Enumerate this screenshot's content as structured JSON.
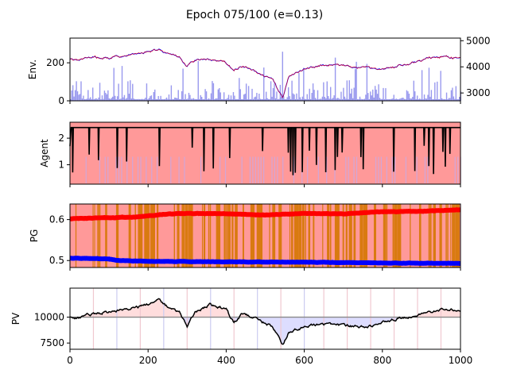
{
  "figure": {
    "title": "Epoch 075/100 (e=0.13)"
  },
  "colors": {
    "price_line": "#0000ff",
    "price_overlay": "#ff0000",
    "volume": "#9999ee",
    "agent_bg": "#ff9999",
    "agent_line": "#000000",
    "pg_orange": "#d97a10",
    "pg_red": "#ff0000",
    "pg_blue": "#0000ff",
    "pv_line": "#000000",
    "pv_pos_fill": "#ffdddd",
    "pv_neg_fill": "#ddddff",
    "baseline": "#888888"
  },
  "chart_data": [
    {
      "type": "line",
      "ylabel": "Env.",
      "xlim": [
        0,
        1000
      ],
      "ylim_left": [
        0,
        330
      ],
      "yticks_left": [
        "0",
        "200"
      ],
      "ylim_right": [
        2700,
        5100
      ],
      "yticks_right": [
        "3000",
        "4000",
        "5000"
      ],
      "series": [
        {
          "values_right_axis_keyframes": [
            [
              0,
              4300
            ],
            [
              20,
              4260
            ],
            [
              60,
              4380
            ],
            [
              100,
              4330
            ],
            [
              140,
              4420
            ],
            [
              180,
              4520
            ],
            [
              230,
              4680
            ],
            [
              240,
              4560
            ],
            [
              280,
              4400
            ],
            [
              300,
              4000
            ],
            [
              320,
              4270
            ],
            [
              360,
              4280
            ],
            [
              400,
              4140
            ],
            [
              420,
              3880
            ],
            [
              440,
              4020
            ],
            [
              480,
              3780
            ],
            [
              520,
              3500
            ],
            [
              545,
              2800
            ],
            [
              560,
              3600
            ],
            [
              600,
              3900
            ],
            [
              640,
              4050
            ],
            [
              680,
              4080
            ],
            [
              720,
              4000
            ],
            [
              760,
              3980
            ],
            [
              800,
              3920
            ],
            [
              840,
              4020
            ],
            [
              880,
              4160
            ],
            [
              920,
              4350
            ],
            [
              960,
              4400
            ],
            [
              1000,
              4300
            ]
          ]
        }
      ]
    },
    {
      "type": "line",
      "ylabel": "Agent",
      "xlim": [
        0,
        1000
      ],
      "ylim": [
        0.27,
        2.6
      ],
      "yticks": [
        "1",
        "2"
      ],
      "series": [
        {
          "baseline_value": 2.4,
          "dip_value": 0.8
        }
      ]
    },
    {
      "type": "line",
      "ylabel": "PG",
      "xlim": [
        0,
        1000
      ],
      "ylim": [
        0.483,
        0.638
      ],
      "yticks": [
        "0.5",
        "0.6"
      ],
      "series": [
        {
          "keyframes": [
            [
              0,
              0.602
            ],
            [
              160,
              0.606
            ],
            [
              200,
              0.609
            ],
            [
              240,
              0.613
            ],
            [
              300,
              0.615
            ],
            [
              400,
              0.614
            ],
            [
              500,
              0.611
            ],
            [
              600,
              0.615
            ],
            [
              700,
              0.614
            ],
            [
              800,
              0.619
            ],
            [
              900,
              0.62
            ],
            [
              1000,
              0.624
            ]
          ]
        },
        {
          "keyframes": [
            [
              0,
              0.506
            ],
            [
              100,
              0.504
            ],
            [
              120,
              0.5
            ],
            [
              200,
              0.498
            ],
            [
              400,
              0.497
            ],
            [
              600,
              0.496
            ],
            [
              800,
              0.494
            ],
            [
              1000,
              0.493
            ]
          ]
        }
      ]
    },
    {
      "type": "line",
      "ylabel": "PV",
      "xlim": [
        0,
        1000
      ],
      "xticks": [
        "0",
        "200",
        "400",
        "600",
        "800",
        "1000"
      ],
      "ylim": [
        6900,
        12800
      ],
      "yticks": [
        "7500",
        "10000"
      ],
      "baseline_value": 10000,
      "series": [
        {
          "keyframes": [
            [
              0,
              9950
            ],
            [
              20,
              9900
            ],
            [
              60,
              10350
            ],
            [
              100,
              10500
            ],
            [
              140,
              10800
            ],
            [
              180,
              11000
            ],
            [
              230,
              11650
            ],
            [
              240,
              11200
            ],
            [
              280,
              10500
            ],
            [
              300,
              9050
            ],
            [
              320,
              10500
            ],
            [
              360,
              11200
            ],
            [
              400,
              10800
            ],
            [
              420,
              9400
            ],
            [
              440,
              10300
            ],
            [
              480,
              9800
            ],
            [
              520,
              9000
            ],
            [
              545,
              7300
            ],
            [
              560,
              8500
            ],
            [
              600,
              9100
            ],
            [
              640,
              9300
            ],
            [
              700,
              9200
            ],
            [
              760,
              9000
            ],
            [
              800,
              9500
            ],
            [
              840,
              9900
            ],
            [
              880,
              10000
            ],
            [
              920,
              10500
            ],
            [
              960,
              10800
            ],
            [
              1000,
              10600
            ]
          ]
        }
      ]
    }
  ]
}
